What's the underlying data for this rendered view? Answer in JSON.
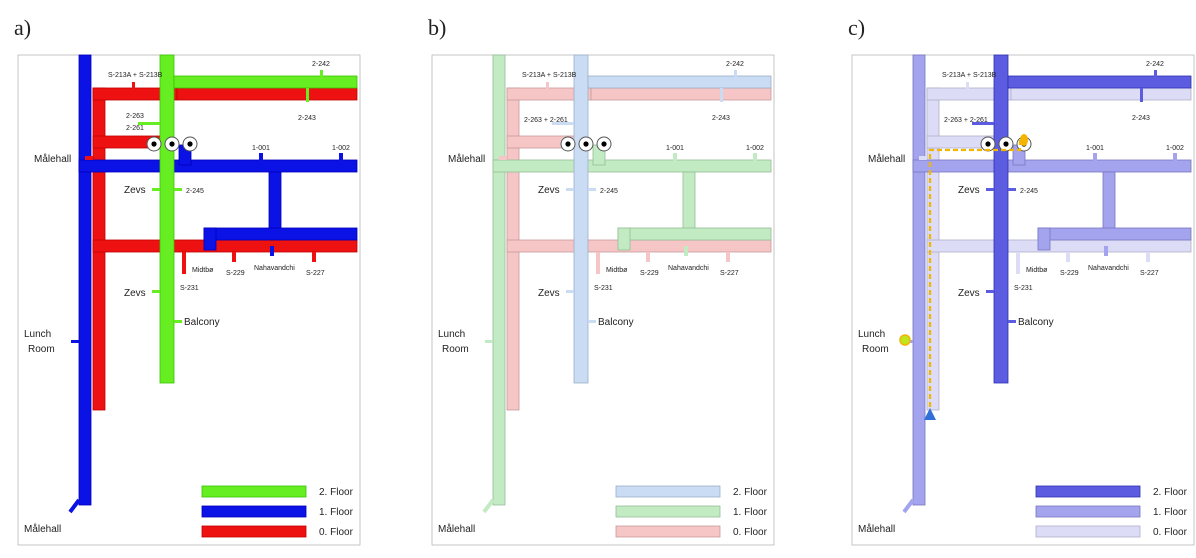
{
  "panels": [
    {
      "letter": "a)"
    },
    {
      "letter": "b)"
    },
    {
      "letter": "c)"
    }
  ],
  "labels": {
    "s213": "S-213A + S-213B",
    "r2242": "2-242",
    "r2243": "2-243",
    "r2263": "2-263",
    "r2261": "2-261",
    "r2263_2261": "2-263 + 2-261",
    "malehall": "Målehall",
    "r1001": "1-001",
    "r1002": "1-002",
    "zevs": "Zevs",
    "r2245": "2-245",
    "midtbo": "Midtbø",
    "s229": "S-229",
    "nahavandchi": "Nahavandchi",
    "s227": "S-227",
    "s231": "S-231",
    "balcony": "Balcony",
    "lunch": "Lunch",
    "room": "Room"
  },
  "legend": {
    "floor2": "2. Floor",
    "floor1": "1. Floor",
    "floor0": "0. Floor"
  },
  "colors": {
    "a": {
      "floor2": "#66ee22",
      "floor1": "#0a12e6",
      "floor0": "#ee1111"
    },
    "b": {
      "floor2": "#c9dcf4",
      "floor1": "#c3ebc3",
      "floor0": "#f6c6c6"
    },
    "c": {
      "floor2": "#5c5ce0",
      "floor1": "#a4a4ee",
      "floor0": "#dcdcf6"
    },
    "path": "#f4b400"
  }
}
